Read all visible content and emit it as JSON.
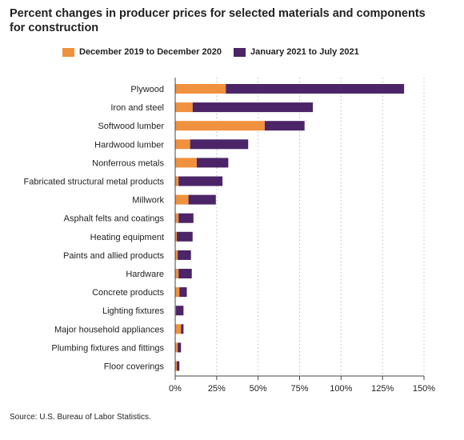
{
  "title": "Percent changes in producer prices for selected materials and components for construction",
  "source": "Source: U.S. Bureau of Labor Statistics.",
  "colors": {
    "series1": "#f0913e",
    "series2": "#4b2567",
    "grid": "#bdbdbd",
    "axis": "#444444"
  },
  "chart_data": {
    "type": "bar",
    "orientation": "horizontal",
    "stacked": true,
    "categories": [
      "Plywood",
      "Iron and steel",
      "Softwood lumber",
      "Hardwood lumber",
      "Nonferrous metals",
      "Fabricated structural metal products",
      "Millwork",
      "Asphalt felts and coatings",
      "Heating equipment",
      "Paints and allied products",
      "Hardware",
      "Concrete products",
      "Lighting fixtures",
      "Major household appliances",
      "Plumbing fixtures and fittings",
      "Floor coverings"
    ],
    "series": [
      {
        "name": "December 2019 to December 2020",
        "values": [
          30.5,
          10.5,
          54,
          9,
          13,
          2,
          8,
          2,
          1,
          1.5,
          2,
          2.5,
          0.5,
          3.5,
          1.5,
          1
        ]
      },
      {
        "name": "January 2021 to July 2021",
        "values": [
          107.5,
          72.5,
          24,
          35,
          19,
          26.5,
          16.5,
          9,
          9.5,
          8,
          8,
          4.5,
          4.5,
          1.5,
          2,
          1.5
        ]
      }
    ],
    "xlim": [
      0,
      150
    ],
    "xticks": [
      0,
      25,
      50,
      75,
      100,
      125,
      150
    ],
    "xtick_labels": [
      "0%",
      "25%",
      "50%",
      "75%",
      "100%",
      "125%",
      "150%"
    ],
    "grid": "vertical-dotted",
    "legend_position": "top"
  }
}
